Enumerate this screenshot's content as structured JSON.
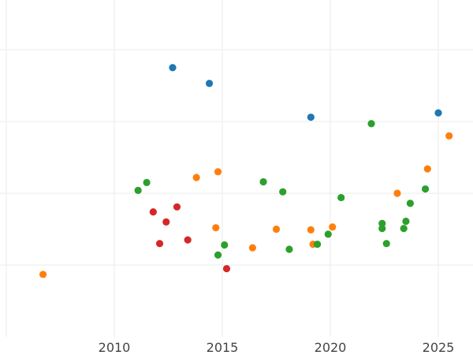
{
  "chart_data": {
    "type": "scatter",
    "title": "",
    "xlabel": "",
    "ylabel": "",
    "xlim": [
      2005,
      2026.5
    ],
    "ylim": [
      0,
      4.7
    ],
    "x_ticks": [
      2010,
      2015,
      2020,
      2025
    ],
    "x_tick_labels": [
      "2010",
      "2015",
      "2020",
      "2025"
    ],
    "y_gridlines": [
      1,
      2,
      3,
      4
    ],
    "x_minor_gridlines": [
      2005
    ],
    "grid": true,
    "legend": "none",
    "series": [
      {
        "color": "#1f77b4",
        "points": [
          {
            "x": 2012.7,
            "y": 3.75
          },
          {
            "x": 2014.4,
            "y": 3.53
          },
          {
            "x": 2019.1,
            "y": 3.06
          },
          {
            "x": 2025.0,
            "y": 3.12
          }
        ]
      },
      {
        "color": "#ff7f0e",
        "points": [
          {
            "x": 2006.7,
            "y": 0.87
          },
          {
            "x": 2013.8,
            "y": 2.22
          },
          {
            "x": 2014.8,
            "y": 2.3
          },
          {
            "x": 2014.7,
            "y": 1.52
          },
          {
            "x": 2016.4,
            "y": 1.24
          },
          {
            "x": 2017.5,
            "y": 1.5
          },
          {
            "x": 2019.1,
            "y": 1.49
          },
          {
            "x": 2019.2,
            "y": 1.29
          },
          {
            "x": 2020.1,
            "y": 1.53
          },
          {
            "x": 2023.1,
            "y": 2.0
          },
          {
            "x": 2024.5,
            "y": 2.34
          },
          {
            "x": 2025.5,
            "y": 2.8
          }
        ]
      },
      {
        "color": "#2ca02c",
        "points": [
          {
            "x": 2011.1,
            "y": 2.04
          },
          {
            "x": 2011.5,
            "y": 2.15
          },
          {
            "x": 2014.8,
            "y": 1.14
          },
          {
            "x": 2015.1,
            "y": 1.28
          },
          {
            "x": 2016.9,
            "y": 2.16
          },
          {
            "x": 2017.8,
            "y": 2.02
          },
          {
            "x": 2018.1,
            "y": 1.22
          },
          {
            "x": 2019.4,
            "y": 1.29
          },
          {
            "x": 2019.9,
            "y": 1.43
          },
          {
            "x": 2020.5,
            "y": 1.94
          },
          {
            "x": 2021.9,
            "y": 2.97
          },
          {
            "x": 2022.4,
            "y": 1.58
          },
          {
            "x": 2022.4,
            "y": 1.51
          },
          {
            "x": 2022.6,
            "y": 1.3
          },
          {
            "x": 2023.4,
            "y": 1.51
          },
          {
            "x": 2023.5,
            "y": 1.61
          },
          {
            "x": 2023.7,
            "y": 1.86
          },
          {
            "x": 2024.4,
            "y": 2.06
          }
        ]
      },
      {
        "color": "#d62728",
        "points": [
          {
            "x": 2011.8,
            "y": 1.74
          },
          {
            "x": 2012.1,
            "y": 1.3
          },
          {
            "x": 2012.4,
            "y": 1.6
          },
          {
            "x": 2012.9,
            "y": 1.81
          },
          {
            "x": 2013.4,
            "y": 1.35
          },
          {
            "x": 2015.2,
            "y": 0.95
          }
        ]
      }
    ]
  }
}
